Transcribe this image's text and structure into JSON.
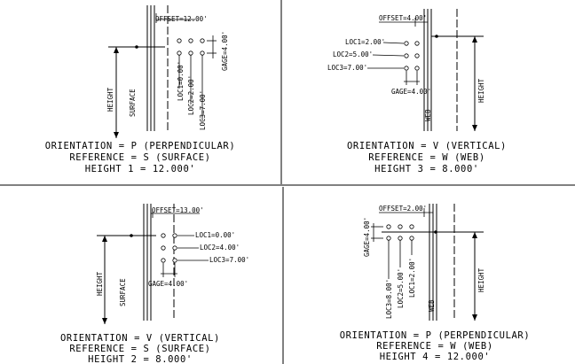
{
  "panels": [
    {
      "offset": "OFFSET=12.00'",
      "gage": "GAGE=4.00'",
      "locs": [
        "LOC1=0.00'",
        "LOC2=2.00'",
        "LOC3=7.00'"
      ],
      "height_label": "HEIGHT",
      "ref_label": "SURFACE",
      "caption": [
        "ORIENTATION = P (PERPENDICULAR)",
        "REFERENCE = S (SURFACE)",
        "HEIGHT 1 = 12.000'"
      ]
    },
    {
      "offset": "OFFSET=4.00'",
      "gage": "GAGE=4.00'",
      "locs": [
        "LOC1=2.00'",
        "LOC2=5.00'",
        "LOC3=7.00'"
      ],
      "height_label": "HEIGHT",
      "ref_label": "WEB",
      "caption": [
        "ORIENTATION = V (VERTICAL)",
        "REFERENCE = W (WEB)",
        "HEIGHT 3 = 8.000'"
      ]
    },
    {
      "offset": "OFFSET=13.00'",
      "gage": "GAGE=4.00'",
      "locs": [
        "LOC1=0.00'",
        "LOC2=4.00'",
        "LOC3=7.00'"
      ],
      "height_label": "HEIGHT",
      "ref_label": "SURFACE",
      "caption": [
        "ORIENTATION = V (VERTICAL)",
        "REFERENCE = S (SURFACE)",
        "HEIGHT 2 = 8.000'"
      ]
    },
    {
      "offset": "OFFSET=2.00'",
      "gage": "GAGE=4.00'",
      "locs": [
        "LOC1=2.00'",
        "LOC2=5.00'",
        "LOC3=8.00'"
      ],
      "height_label": "HEIGHT",
      "ref_label": "WEB",
      "caption": [
        "ORIENTATION = P (PERPENDICULAR)",
        "REFERENCE = W (WEB)",
        "HEIGHT 4 = 12.000'"
      ]
    }
  ]
}
